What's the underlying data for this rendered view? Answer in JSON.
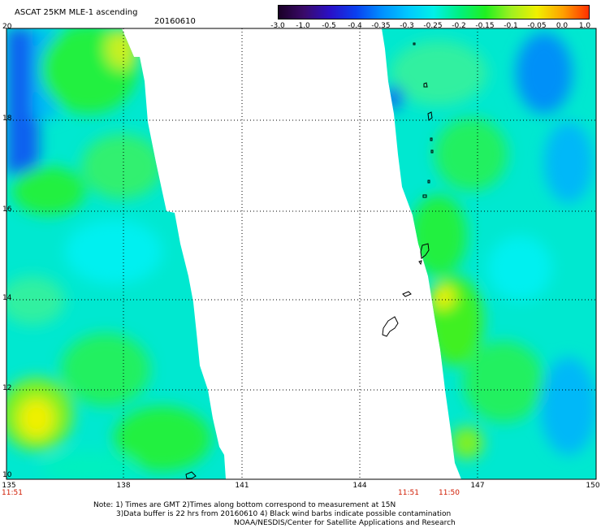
{
  "header": {
    "title": "ASCAT 25KM MLE-1 ascending",
    "date": "20160610"
  },
  "colorbar": {
    "labels": [
      "-3.0",
      "-1.0",
      "-0.5",
      "-0.4",
      "-0.35",
      "-0.3",
      "-0.25",
      "-0.2",
      "-0.15",
      "-0.1",
      "-0.05",
      "0.0",
      "1.0"
    ],
    "colors": [
      "#1a0026",
      "#3a0a6a",
      "#2a10c8",
      "#0a40f0",
      "#0090ff",
      "#00c8ff",
      "#00f0e8",
      "#00f080",
      "#20f020",
      "#a0f020",
      "#f0f000",
      "#ffa000",
      "#ff3000"
    ]
  },
  "axes": {
    "lat_ticks": [
      "20",
      "18",
      "16",
      "14",
      "12",
      "10"
    ],
    "lon_ticks": [
      "135",
      "138",
      "141",
      "144",
      "147",
      "150"
    ]
  },
  "pass_times": {
    "left": "11:51",
    "right_a": "11:51",
    "right_b": "11:50"
  },
  "notes": {
    "line1": "Note: 1) Times are GMT 2)Times along bottom correspond to measurement at 15N",
    "line2": "3)Data buffer is 22 hrs from 20160610 4) Black wind barbs indicate possible contamination",
    "line3": "NOAA/NESDIS/Center for Satellite Applications and Research"
  },
  "palette": {
    "cyan": "#00f0f0",
    "teal": "#00e8c8",
    "green": "#10f040",
    "lime": "#80f020",
    "yellow": "#f0f000",
    "blue": "#1060f0",
    "sky": "#00b8f8",
    "orange": "#ffa000"
  }
}
